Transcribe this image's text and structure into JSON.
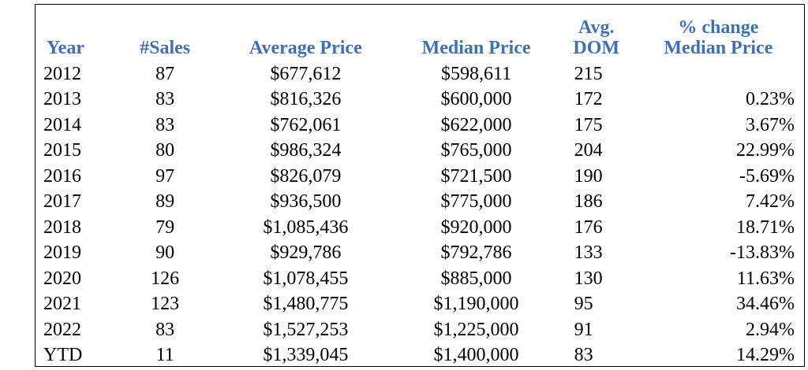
{
  "table": {
    "headers": {
      "year": "Year",
      "sales": "#Sales",
      "avg_price": "Average Price",
      "median_price": "Median Price",
      "dom_line1": "Avg.",
      "dom_line2": "DOM",
      "pct_line1": "% change",
      "pct_line2": "Median Price"
    },
    "rows": [
      {
        "year": "2012",
        "sales": "87",
        "avg_price": "$677,612",
        "median_price": "$598,611",
        "dom": "215",
        "pct": ""
      },
      {
        "year": "2013",
        "sales": "83",
        "avg_price": "$816,326",
        "median_price": "$600,000",
        "dom": "172",
        "pct": "0.23%"
      },
      {
        "year": "2014",
        "sales": "83",
        "avg_price": "$762,061",
        "median_price": "$622,000",
        "dom": "175",
        "pct": "3.67%"
      },
      {
        "year": "2015",
        "sales": "80",
        "avg_price": "$986,324",
        "median_price": "$765,000",
        "dom": "204",
        "pct": "22.99%"
      },
      {
        "year": "2016",
        "sales": "97",
        "avg_price": "$826,079",
        "median_price": "$721,500",
        "dom": "190",
        "pct": "-5.69%"
      },
      {
        "year": "2017",
        "sales": "89",
        "avg_price": "$936,500",
        "median_price": "$775,000",
        "dom": "186",
        "pct": "7.42%"
      },
      {
        "year": "2018",
        "sales": "79",
        "avg_price": "$1,085,436",
        "median_price": "$920,000",
        "dom": "176",
        "pct": "18.71%"
      },
      {
        "year": "2019",
        "sales": "90",
        "avg_price": "$929,786",
        "median_price": "$792,786",
        "dom": "133",
        "pct": "-13.83%"
      },
      {
        "year": "2020",
        "sales": "126",
        "avg_price": "$1,078,455",
        "median_price": "$885,000",
        "dom": "130",
        "pct": "11.63%"
      },
      {
        "year": "2021",
        "sales": "123",
        "avg_price": "$1,480,775",
        "median_price": "$1,190,000",
        "dom": "95",
        "pct": "34.46%"
      },
      {
        "year": "2022",
        "sales": "83",
        "avg_price": "$1,527,253",
        "median_price": "$1,225,000",
        "dom": "91",
        "pct": "2.94%"
      },
      {
        "year": "YTD",
        "sales": "11",
        "avg_price": "$1,339,045",
        "median_price": "$1,400,000",
        "dom": "83",
        "pct": "14.29%"
      }
    ]
  },
  "colors": {
    "header_text": "#3f6fb5",
    "body_text": "#000000",
    "border": "#000000"
  }
}
